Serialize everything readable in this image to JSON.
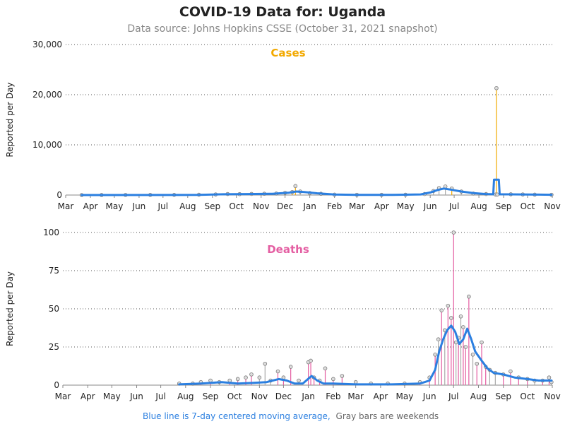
{
  "header": {
    "title": "COVID-19 Data for: Uganda",
    "subtitle": "Data source: Johns Hopkins CSSE (October 31, 2021 snapshot)"
  },
  "footer": {
    "avg_note": "Blue line is 7-day centered moving average,",
    "weekend_note": "Gray bars are weekends"
  },
  "colors": {
    "cases": "#f2a900",
    "deaths": "#e45ea2",
    "average": "#2b7fe0",
    "weekend": "#aaaaaa",
    "grid": "#555555"
  },
  "chart_data": [
    {
      "type": "bar",
      "title": "Cases",
      "xlabel": "",
      "ylabel": "Reported per Day",
      "x_range": [
        "2020-03-01",
        "2021-11-01"
      ],
      "ylim": [
        0,
        30000
      ],
      "y_ticks": [
        "0",
        "10,000",
        "20,000",
        "30,000"
      ],
      "x_ticks": [
        "Mar",
        "Apr",
        "May",
        "Jun",
        "Jul",
        "Aug",
        "Sep",
        "Oct",
        "Nov",
        "Dec",
        "Jan",
        "Feb",
        "Mar",
        "Apr",
        "May",
        "Jun",
        "Jul",
        "Aug",
        "Sep",
        "Oct",
        "Nov"
      ],
      "grid": "horizontal dotted",
      "series": [
        {
          "role": "daily",
          "points": [
            [
              "2020-03-21",
              1
            ],
            [
              "2020-04-15",
              4
            ],
            [
              "2020-05-15",
              18
            ],
            [
              "2020-06-15",
              20
            ],
            [
              "2020-07-15",
              25
            ],
            [
              "2020-08-15",
              60
            ],
            [
              "2020-09-05",
              120
            ],
            [
              "2020-09-20",
              200
            ],
            [
              "2020-10-05",
              180
            ],
            [
              "2020-10-20",
              220
            ],
            [
              "2020-11-05",
              250
            ],
            [
              "2020-11-20",
              300
            ],
            [
              "2020-12-01",
              450
            ],
            [
              "2020-12-10",
              600
            ],
            [
              "2020-12-14",
              1800
            ],
            [
              "2020-12-20",
              700
            ],
            [
              "2021-01-01",
              400
            ],
            [
              "2021-01-15",
              250
            ],
            [
              "2021-02-01",
              80
            ],
            [
              "2021-03-01",
              50
            ],
            [
              "2021-04-01",
              40
            ],
            [
              "2021-05-01",
              60
            ],
            [
              "2021-05-25",
              200
            ],
            [
              "2021-06-05",
              800
            ],
            [
              "2021-06-12",
              1400
            ],
            [
              "2021-06-20",
              1700
            ],
            [
              "2021-06-28",
              1300
            ],
            [
              "2021-07-10",
              700
            ],
            [
              "2021-07-25",
              300
            ],
            [
              "2021-08-10",
              200
            ],
            [
              "2021-08-22",
              100
            ],
            [
              "2021-08-23",
              21300
            ],
            [
              "2021-08-24",
              100
            ],
            [
              "2021-09-10",
              150
            ],
            [
              "2021-09-25",
              120
            ],
            [
              "2021-10-10",
              80
            ],
            [
              "2021-10-31",
              50
            ]
          ]
        },
        {
          "role": "7-day average",
          "points": [
            [
              "2020-03-21",
              0
            ],
            [
              "2020-08-15",
              30
            ],
            [
              "2020-09-15",
              150
            ],
            [
              "2020-10-15",
              200
            ],
            [
              "2020-11-15",
              250
            ],
            [
              "2020-12-05",
              450
            ],
            [
              "2020-12-15",
              700
            ],
            [
              "2020-12-25",
              600
            ],
            [
              "2021-01-10",
              350
            ],
            [
              "2021-02-01",
              100
            ],
            [
              "2021-03-01",
              40
            ],
            [
              "2021-04-15",
              40
            ],
            [
              "2021-05-20",
              120
            ],
            [
              "2021-06-01",
              500
            ],
            [
              "2021-06-10",
              1000
            ],
            [
              "2021-06-18",
              1300
            ],
            [
              "2021-06-26",
              1100
            ],
            [
              "2021-07-10",
              700
            ],
            [
              "2021-07-25",
              400
            ],
            [
              "2021-08-10",
              200
            ],
            [
              "2021-08-19",
              150
            ],
            [
              "2021-08-20",
              3050
            ],
            [
              "2021-08-26",
              3050
            ],
            [
              "2021-08-27",
              150
            ],
            [
              "2021-09-20",
              120
            ],
            [
              "2021-10-15",
              80
            ],
            [
              "2021-10-31",
              50
            ]
          ]
        }
      ]
    },
    {
      "type": "bar",
      "title": "Deaths",
      "xlabel": "",
      "ylabel": "Reported per Day",
      "x_range": [
        "2020-03-01",
        "2021-11-01"
      ],
      "ylim": [
        0,
        100
      ],
      "y_ticks": [
        "0",
        "25",
        "50",
        "75",
        "100"
      ],
      "x_ticks": [
        "Mar",
        "Apr",
        "May",
        "Jun",
        "Jul",
        "Aug",
        "Sep",
        "Oct",
        "Nov",
        "Dec",
        "Jan",
        "Feb",
        "Mar",
        "Apr",
        "May",
        "Jun",
        "Jul",
        "Aug",
        "Sep",
        "Oct",
        "Nov"
      ],
      "grid": "horizontal dotted",
      "series": [
        {
          "role": "daily",
          "points": [
            [
              "2020-07-24",
              1
            ],
            [
              "2020-08-10",
              1
            ],
            [
              "2020-08-20",
              2
            ],
            [
              "2020-09-01",
              3
            ],
            [
              "2020-09-12",
              2
            ],
            [
              "2020-09-25",
              3
            ],
            [
              "2020-10-05",
              4
            ],
            [
              "2020-10-15",
              5
            ],
            [
              "2020-10-22",
              7
            ],
            [
              "2020-11-01",
              5
            ],
            [
              "2020-11-08",
              14
            ],
            [
              "2020-11-15",
              3
            ],
            [
              "2020-11-24",
              9
            ],
            [
              "2020-12-01",
              5
            ],
            [
              "2020-12-10",
              12
            ],
            [
              "2020-12-20",
              3
            ],
            [
              "2021-01-01",
              15
            ],
            [
              "2021-01-04",
              16
            ],
            [
              "2021-01-08",
              5
            ],
            [
              "2021-01-15",
              3
            ],
            [
              "2021-01-22",
              11
            ],
            [
              "2021-02-01",
              4
            ],
            [
              "2021-02-12",
              6
            ],
            [
              "2021-03-01",
              2
            ],
            [
              "2021-03-20",
              1
            ],
            [
              "2021-04-10",
              1
            ],
            [
              "2021-05-01",
              1
            ],
            [
              "2021-05-20",
              2
            ],
            [
              "2021-06-01",
              5
            ],
            [
              "2021-06-08",
              20
            ],
            [
              "2021-06-12",
              30
            ],
            [
              "2021-06-16",
              49
            ],
            [
              "2021-06-20",
              36
            ],
            [
              "2021-06-24",
              52
            ],
            [
              "2021-06-28",
              44
            ],
            [
              "2021-07-01",
              100
            ],
            [
              "2021-07-04",
              28
            ],
            [
              "2021-07-07",
              31
            ],
            [
              "2021-07-10",
              45
            ],
            [
              "2021-07-13",
              38
            ],
            [
              "2021-07-16",
              25
            ],
            [
              "2021-07-20",
              58
            ],
            [
              "2021-07-25",
              20
            ],
            [
              "2021-07-30",
              14
            ],
            [
              "2021-08-05",
              28
            ],
            [
              "2021-08-10",
              12
            ],
            [
              "2021-08-15",
              10
            ],
            [
              "2021-08-22",
              8
            ],
            [
              "2021-09-01",
              7
            ],
            [
              "2021-09-10",
              9
            ],
            [
              "2021-09-20",
              5
            ],
            [
              "2021-10-01",
              4
            ],
            [
              "2021-10-10",
              3
            ],
            [
              "2021-10-20",
              3
            ],
            [
              "2021-10-28",
              5
            ],
            [
              "2021-10-31",
              2
            ]
          ]
        },
        {
          "role": "7-day average",
          "points": [
            [
              "2020-07-24",
              0.5
            ],
            [
              "2020-08-20",
              1
            ],
            [
              "2020-09-15",
              2
            ],
            [
              "2020-10-05",
              1
            ],
            [
              "2020-10-25",
              1.5
            ],
            [
              "2020-11-10",
              2
            ],
            [
              "2020-11-25",
              4
            ],
            [
              "2020-12-05",
              3
            ],
            [
              "2020-12-15",
              1
            ],
            [
              "2020-12-25",
              1
            ],
            [
              "2021-01-05",
              6
            ],
            [
              "2021-01-12",
              3
            ],
            [
              "2021-01-20",
              1
            ],
            [
              "2021-02-01",
              1
            ],
            [
              "2021-03-01",
              0.5
            ],
            [
              "2021-04-15",
              0.5
            ],
            [
              "2021-05-20",
              1
            ],
            [
              "2021-06-01",
              3
            ],
            [
              "2021-06-08",
              10
            ],
            [
              "2021-06-13",
              22
            ],
            [
              "2021-06-18",
              30
            ],
            [
              "2021-06-23",
              36
            ],
            [
              "2021-06-28",
              39
            ],
            [
              "2021-07-03",
              35
            ],
            [
              "2021-07-08",
              27
            ],
            [
              "2021-07-13",
              30
            ],
            [
              "2021-07-18",
              37
            ],
            [
              "2021-07-23",
              30
            ],
            [
              "2021-07-28",
              22
            ],
            [
              "2021-08-05",
              16
            ],
            [
              "2021-08-12",
              11
            ],
            [
              "2021-08-20",
              8
            ],
            [
              "2021-09-01",
              7
            ],
            [
              "2021-09-15",
              5
            ],
            [
              "2021-10-01",
              4
            ],
            [
              "2021-10-15",
              3
            ],
            [
              "2021-10-31",
              3
            ]
          ]
        }
      ]
    }
  ]
}
